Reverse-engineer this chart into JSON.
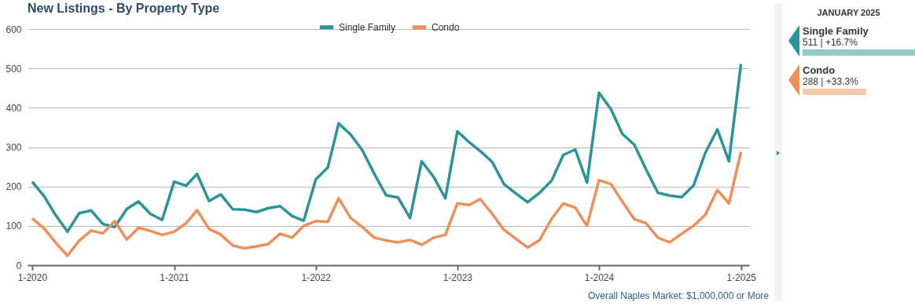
{
  "chart_data": {
    "type": "line",
    "title": "New Listings - By Property Type",
    "x": [
      "2020-01",
      "2020-02",
      "2020-03",
      "2020-04",
      "2020-05",
      "2020-06",
      "2020-07",
      "2020-08",
      "2020-09",
      "2020-10",
      "2020-11",
      "2020-12",
      "2021-01",
      "2021-02",
      "2021-03",
      "2021-04",
      "2021-05",
      "2021-06",
      "2021-07",
      "2021-08",
      "2021-09",
      "2021-10",
      "2021-11",
      "2021-12",
      "2022-01",
      "2022-02",
      "2022-03",
      "2022-04",
      "2022-05",
      "2022-06",
      "2022-07",
      "2022-08",
      "2022-09",
      "2022-10",
      "2022-11",
      "2022-12",
      "2023-01",
      "2023-02",
      "2023-03",
      "2023-04",
      "2023-05",
      "2023-06",
      "2023-07",
      "2023-08",
      "2023-09",
      "2023-10",
      "2023-11",
      "2023-12",
      "2024-01",
      "2024-02",
      "2024-03",
      "2024-04",
      "2024-05",
      "2024-06",
      "2024-07",
      "2024-08",
      "2024-09",
      "2024-10",
      "2024-11",
      "2024-12",
      "2025-01"
    ],
    "series": [
      {
        "name": "Single Family",
        "color": "#2a9499",
        "values": [
          212,
          175,
          128,
          85,
          132,
          139,
          105,
          97,
          143,
          162,
          130,
          115,
          212,
          202,
          232,
          163,
          180,
          142,
          141,
          135,
          145,
          150,
          125,
          113,
          218,
          248,
          360,
          332,
          292,
          232,
          178,
          172,
          120,
          264,
          224,
          170,
          340,
          312,
          290,
          262,
          206,
          182,
          160,
          184,
          215,
          280,
          294,
          210,
          438,
          396,
          334,
          306,
          244,
          184,
          177,
          173,
          203,
          285,
          345,
          264,
          511
        ]
      },
      {
        "name": "Condo",
        "color": "#ef8f57",
        "values": [
          119,
          93,
          58,
          24,
          62,
          88,
          81,
          112,
          65,
          95,
          87,
          77,
          85,
          107,
          140,
          92,
          78,
          50,
          43,
          48,
          54,
          80,
          70,
          100,
          112,
          110,
          170,
          120,
          97,
          70,
          63,
          58,
          64,
          52,
          70,
          77,
          157,
          153,
          168,
          130,
          90,
          67,
          45,
          64,
          118,
          157,
          146,
          100,
          216,
          206,
          162,
          117,
          107,
          70,
          58,
          80,
          100,
          128,
          191,
          157,
          288
        ]
      }
    ],
    "xlim": [
      "2019-12-20",
      "2025-01-22"
    ],
    "xticks": [
      {
        "value": "2020-01",
        "label": "1-2020"
      },
      {
        "value": "2021-01",
        "label": "1-2021"
      },
      {
        "value": "2022-01",
        "label": "1-2022"
      },
      {
        "value": "2023-01",
        "label": "1-2023"
      },
      {
        "value": "2024-01",
        "label": "1-2024"
      },
      {
        "value": "2025-01",
        "label": "1-2025"
      }
    ],
    "ylim": [
      0,
      600
    ],
    "yticks": [
      0,
      100,
      200,
      300,
      400,
      500,
      600
    ],
    "grid": "y",
    "legend": "top",
    "marker": "none",
    "line_style": "solid",
    "annotations": [
      "Overall Naples Market: $1,000,000 or More",
      "JANUARY 2025",
      "511 | +16.7%",
      "288 | +33.3%"
    ]
  }
}
